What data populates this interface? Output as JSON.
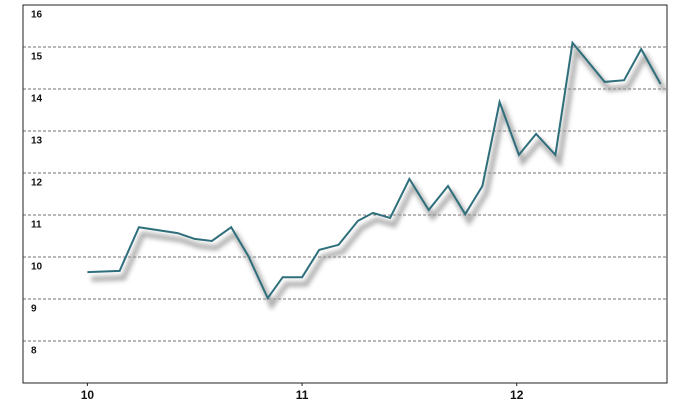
{
  "chart_data": {
    "type": "line",
    "x": [
      10.0,
      10.15,
      10.24,
      10.42,
      10.5,
      10.58,
      10.67,
      10.75,
      10.84,
      10.91,
      11.0,
      11.08,
      11.17,
      11.26,
      11.33,
      11.41,
      11.5,
      11.59,
      11.68,
      11.76,
      11.84,
      11.92,
      12.01,
      12.09,
      12.18,
      12.26,
      12.41,
      12.5,
      12.58,
      12.67
    ],
    "values": [
      9.64,
      9.67,
      10.71,
      10.57,
      10.43,
      10.38,
      10.71,
      10.02,
      9.02,
      9.52,
      9.52,
      10.17,
      10.29,
      10.86,
      11.05,
      10.93,
      11.86,
      11.12,
      11.69,
      11.02,
      11.69,
      13.69,
      12.43,
      12.93,
      12.43,
      15.1,
      14.17,
      14.21,
      14.95,
      14.12
    ],
    "color": "#2f6f7c",
    "xlim": [
      9.7,
      12.7
    ],
    "xticks": [
      10,
      11,
      12
    ],
    "ylim": [
      7,
      16
    ],
    "yticks": [
      8,
      9,
      10,
      11,
      12,
      13,
      14,
      15,
      16
    ],
    "grid": true
  }
}
